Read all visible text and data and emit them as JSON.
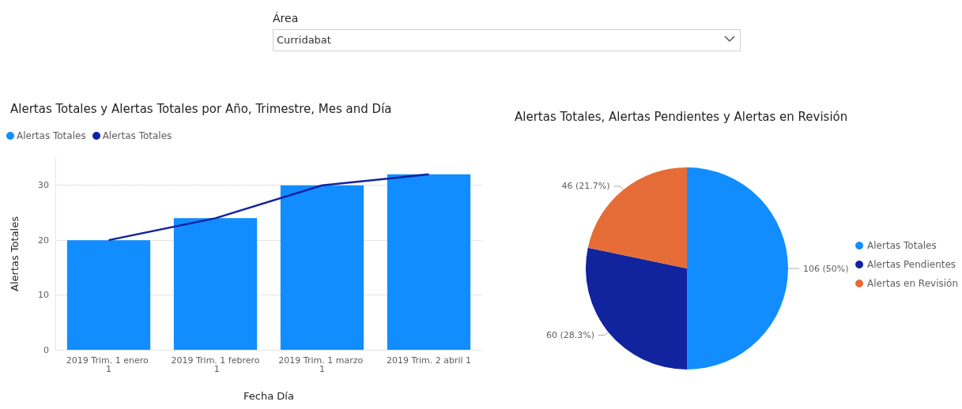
{
  "chart_data": [
    {
      "type": "other",
      "title": "Área",
      "annotations": [
        "Curridabat"
      ]
    },
    {
      "type": "bar",
      "title": "Alertas Totales y Alertas Totales por Año, Trimestre, Mes and Día",
      "xlabel": "Fecha Día",
      "ylabel": "Alertas Totales",
      "categories": [
        "2019 Trim. 1 enero 1",
        "2019 Trim. 1 febrero 1",
        "2019 Trim. 1 marzo 1",
        "2019 Trim. 2 abril 1"
      ],
      "series": [
        {
          "name": "Alertas Totales",
          "type": "bar",
          "color": "#118dff",
          "values": [
            20,
            24,
            30,
            32
          ]
        },
        {
          "name": "Alertas Totales",
          "type": "line",
          "color": "#12239e",
          "values": [
            20,
            24,
            30,
            32
          ]
        }
      ],
      "ylim": [
        0,
        35
      ],
      "yticks": [
        0,
        10,
        20,
        30
      ],
      "grid": "y",
      "legend": "top left",
      "marker": "none"
    },
    {
      "type": "pie",
      "title": "Alertas Totales, Alertas Pendientes y Alertas en Revisión",
      "categories": [
        "Alertas Totales",
        "Alertas Pendientes",
        "Alertas en Revisión"
      ],
      "values": [
        106,
        60,
        46
      ],
      "colors": [
        "#118dff",
        "#12239e",
        "#e66c37"
      ],
      "value_labels": [
        "106 (50%)",
        "60 (28.3%)",
        "46 (21.7%)"
      ],
      "legend": "right"
    }
  ]
}
